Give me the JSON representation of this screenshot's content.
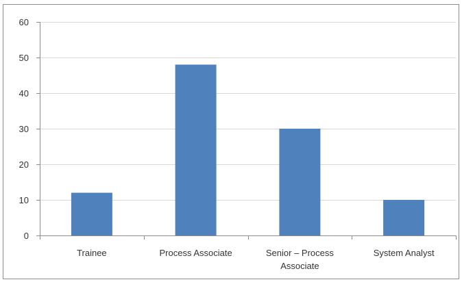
{
  "chart_data": {
    "type": "bar",
    "title": "",
    "xlabel": "",
    "ylabel": "",
    "categories": [
      [
        "Trainee"
      ],
      [
        "Process Associate"
      ],
      [
        "Senior – Process",
        "Associate"
      ],
      [
        "System Analyst"
      ]
    ],
    "values": [
      12,
      48,
      30,
      10
    ],
    "ylim": [
      0,
      60
    ],
    "yticks": [
      "0",
      "10",
      "20",
      "30",
      "40",
      "50",
      "60"
    ],
    "grid": true,
    "legend": "none",
    "bar_color": "#4f81bd",
    "grid_color": "#d9d9d9",
    "axis_color": "#8c8c8c"
  }
}
